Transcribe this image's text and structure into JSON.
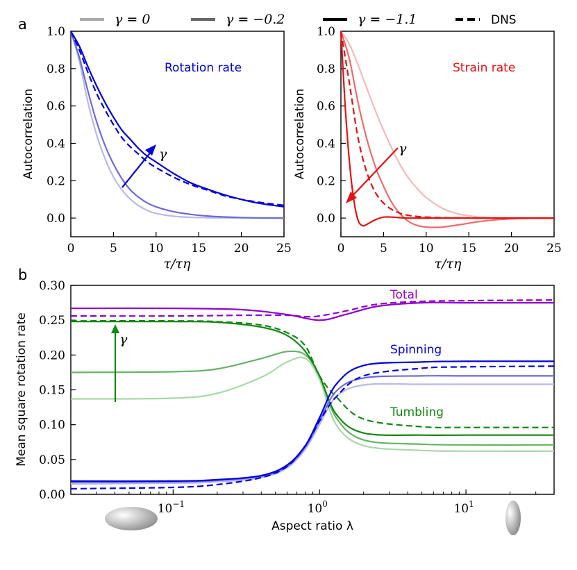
{
  "chart_data": [
    {
      "type": "line",
      "panel_label": "a",
      "xlabel": "τ/τη",
      "ylabel": "Autocorrelation",
      "xlim": [
        0,
        25
      ],
      "ylim": [
        -0.1,
        1.0
      ],
      "xticks": [
        "0",
        "5",
        "10",
        "15",
        "20",
        "25"
      ],
      "yticks": [
        "0.0",
        "0.2",
        "0.4",
        "0.6",
        "0.8",
        "1.0"
      ],
      "annotation": "Rotation rate",
      "arrow_label": "γ",
      "colors": [
        "#b8b8ee",
        "#6a6ae0",
        "#0000dd",
        "#0000dd"
      ],
      "series": [
        {
          "name": "γ = 0",
          "x": [
            0,
            1,
            2,
            3,
            4,
            5,
            6,
            7,
            8,
            9,
            10,
            12,
            14,
            16,
            18,
            20,
            22,
            25
          ],
          "values": [
            1.0,
            0.84,
            0.62,
            0.45,
            0.32,
            0.22,
            0.15,
            0.1,
            0.065,
            0.04,
            0.025,
            0.01,
            0.004,
            0.002,
            0.001,
            0,
            0,
            0
          ]
        },
        {
          "name": "γ = -0.2",
          "x": [
            0,
            1,
            2,
            3,
            4,
            5,
            6,
            7,
            8,
            9,
            10,
            12,
            14,
            16,
            18,
            20,
            22,
            25
          ],
          "values": [
            1.0,
            0.86,
            0.68,
            0.52,
            0.39,
            0.29,
            0.21,
            0.15,
            0.11,
            0.08,
            0.06,
            0.035,
            0.02,
            0.011,
            0.006,
            0.003,
            0.001,
            0
          ]
        },
        {
          "name": "γ = -1.1",
          "x": [
            0,
            1,
            2,
            3,
            4,
            5,
            6,
            7,
            8,
            9,
            10,
            12,
            14,
            16,
            18,
            20,
            22,
            25
          ],
          "values": [
            1.0,
            0.92,
            0.81,
            0.71,
            0.62,
            0.54,
            0.47,
            0.42,
            0.37,
            0.33,
            0.3,
            0.24,
            0.19,
            0.155,
            0.125,
            0.1,
            0.08,
            0.06
          ]
        },
        {
          "name": "DNS",
          "x": [
            0,
            1,
            2,
            3,
            4,
            5,
            6,
            7,
            8,
            9,
            10,
            12,
            14,
            16,
            18,
            20,
            22,
            25
          ],
          "values": [
            1.0,
            0.9,
            0.78,
            0.67,
            0.58,
            0.5,
            0.43,
            0.38,
            0.34,
            0.3,
            0.27,
            0.22,
            0.18,
            0.15,
            0.12,
            0.1,
            0.085,
            0.068
          ]
        }
      ]
    },
    {
      "type": "line",
      "xlabel": "τ/τη",
      "ylabel": "Autocorrelation",
      "xlim": [
        0,
        25
      ],
      "ylim": [
        -0.1,
        1.0
      ],
      "xticks": [
        "0",
        "5",
        "10",
        "15",
        "20",
        "25"
      ],
      "yticks": [
        "0.0",
        "0.2",
        "0.4",
        "0.6",
        "0.8",
        "1.0"
      ],
      "annotation": "Strain rate",
      "arrow_label": "γ",
      "colors": [
        "#f5b8b8",
        "#ee6a6a",
        "#e81010",
        "#e81010"
      ],
      "series": [
        {
          "name": "γ = 0",
          "x": [
            0,
            1,
            2,
            3,
            4,
            5,
            6,
            7,
            8,
            9,
            10,
            12,
            14,
            16,
            18,
            20,
            22,
            25
          ],
          "values": [
            1.0,
            0.93,
            0.82,
            0.7,
            0.58,
            0.47,
            0.37,
            0.28,
            0.21,
            0.155,
            0.11,
            0.05,
            0.02,
            0.007,
            0.002,
            0,
            0,
            0
          ]
        },
        {
          "name": "γ = -0.2",
          "x": [
            0,
            1,
            2,
            3,
            4,
            5,
            6,
            7,
            8,
            9,
            10,
            11,
            12,
            14,
            16,
            18,
            20,
            22,
            25
          ],
          "values": [
            1.0,
            0.85,
            0.62,
            0.43,
            0.28,
            0.17,
            0.08,
            0.02,
            -0.02,
            -0.04,
            -0.048,
            -0.05,
            -0.048,
            -0.035,
            -0.02,
            -0.01,
            -0.004,
            -0.001,
            0
          ]
        },
        {
          "name": "γ = -1.1",
          "x": [
            0,
            0.5,
            1,
            1.5,
            2,
            2.5,
            3,
            4,
            5,
            6,
            7,
            8,
            10,
            12,
            15,
            20,
            25
          ],
          "values": [
            1.0,
            0.6,
            0.3,
            0.1,
            -0.01,
            -0.04,
            -0.035,
            -0.01,
            0.005,
            0.005,
            0.002,
            0,
            0,
            0,
            0,
            0,
            0
          ]
        },
        {
          "name": "DNS",
          "x": [
            0,
            1,
            2,
            3,
            4,
            5,
            6,
            7,
            8,
            9,
            10,
            12,
            14,
            16,
            18,
            20,
            22,
            25
          ],
          "values": [
            1.0,
            0.72,
            0.43,
            0.25,
            0.14,
            0.08,
            0.045,
            0.025,
            0.014,
            0.008,
            0.005,
            0.002,
            0.001,
            0,
            0,
            0,
            0,
            0
          ]
        }
      ]
    },
    {
      "type": "line",
      "panel_label": "b",
      "xlabel": "Aspect ratio λ",
      "ylabel": "Mean square rotation rate",
      "xscale": "log",
      "xlim": [
        0.02,
        40
      ],
      "ylim": [
        0.0,
        0.3
      ],
      "xticks": [
        "10−1",
        "100",
        "101"
      ],
      "yticks": [
        "0.00",
        "0.05",
        "0.10",
        "0.15",
        "0.20",
        "0.25",
        "0.30"
      ],
      "annotations": [
        "Total",
        "Spinning",
        "Tumbling"
      ],
      "arrow_label": "γ",
      "series": [
        {
          "name": "Total γ = -1.1",
          "group": "Total",
          "color": "#9400cc",
          "dashed": false,
          "x": [
            0.02,
            0.1,
            0.3,
            0.6,
            1.0,
            1.5,
            2.5,
            5,
            10,
            40
          ],
          "values": [
            0.267,
            0.267,
            0.265,
            0.258,
            0.25,
            0.258,
            0.27,
            0.275,
            0.275,
            0.275
          ]
        },
        {
          "name": "Total DNS",
          "group": "Total",
          "color": "#9400cc",
          "dashed": true,
          "x": [
            0.02,
            0.1,
            0.3,
            0.6,
            0.8,
            1.0,
            1.5,
            2.5,
            5,
            10,
            40
          ],
          "values": [
            0.256,
            0.256,
            0.257,
            0.257,
            0.255,
            0.256,
            0.263,
            0.273,
            0.277,
            0.278,
            0.279
          ]
        },
        {
          "name": "Tumbling γ = 0",
          "group": "Tumbling",
          "color": "#a8d8a8",
          "dashed": false,
          "x": [
            0.02,
            0.1,
            0.2,
            0.4,
            0.6,
            0.8,
            1.0,
            1.3,
            2,
            5,
            10,
            40
          ],
          "values": [
            0.137,
            0.138,
            0.145,
            0.168,
            0.19,
            0.195,
            0.165,
            0.1,
            0.07,
            0.063,
            0.062,
            0.062
          ]
        },
        {
          "name": "Tumbling γ = -0.2",
          "group": "Tumbling",
          "color": "#66b366",
          "dashed": false,
          "x": [
            0.02,
            0.1,
            0.2,
            0.4,
            0.6,
            0.8,
            1.0,
            1.3,
            2,
            5,
            10,
            40
          ],
          "values": [
            0.175,
            0.176,
            0.18,
            0.195,
            0.205,
            0.2,
            0.17,
            0.11,
            0.078,
            0.072,
            0.071,
            0.071
          ]
        },
        {
          "name": "Tumbling γ = -1.1",
          "group": "Tumbling",
          "color": "#118811",
          "dashed": false,
          "x": [
            0.02,
            0.1,
            0.2,
            0.4,
            0.6,
            0.8,
            1.0,
            1.3,
            2,
            5,
            10,
            40
          ],
          "values": [
            0.248,
            0.248,
            0.247,
            0.24,
            0.228,
            0.205,
            0.17,
            0.115,
            0.088,
            0.085,
            0.085,
            0.085
          ]
        },
        {
          "name": "Tumbling DNS",
          "group": "Tumbling",
          "color": "#118811",
          "dashed": true,
          "x": [
            0.02,
            0.1,
            0.2,
            0.4,
            0.6,
            0.8,
            1.0,
            1.3,
            2,
            5,
            10,
            40
          ],
          "values": [
            0.249,
            0.249,
            0.248,
            0.243,
            0.232,
            0.213,
            0.17,
            0.14,
            0.108,
            0.097,
            0.096,
            0.096
          ]
        },
        {
          "name": "Spinning γ = 0",
          "group": "Spinning",
          "color": "#b8b8ee",
          "dashed": false,
          "x": [
            0.02,
            0.1,
            0.2,
            0.4,
            0.6,
            0.8,
            1.0,
            1.3,
            2,
            5,
            10,
            40
          ],
          "values": [
            0.015,
            0.016,
            0.018,
            0.024,
            0.038,
            0.065,
            0.1,
            0.14,
            0.157,
            0.158,
            0.158,
            0.158
          ]
        },
        {
          "name": "Spinning γ = -0.2",
          "group": "Spinning",
          "color": "#6a6ae0",
          "dashed": false,
          "x": [
            0.02,
            0.1,
            0.2,
            0.4,
            0.6,
            0.8,
            1.0,
            1.3,
            2,
            5,
            10,
            40
          ],
          "values": [
            0.017,
            0.018,
            0.02,
            0.026,
            0.04,
            0.068,
            0.105,
            0.148,
            0.167,
            0.17,
            0.17,
            0.17
          ]
        },
        {
          "name": "Spinning γ = -1.1",
          "group": "Spinning",
          "color": "#0000dd",
          "dashed": false,
          "x": [
            0.02,
            0.1,
            0.2,
            0.4,
            0.6,
            0.8,
            1.0,
            1.3,
            2,
            5,
            10,
            40
          ],
          "values": [
            0.019,
            0.019,
            0.021,
            0.027,
            0.042,
            0.07,
            0.11,
            0.158,
            0.185,
            0.19,
            0.191,
            0.191
          ]
        },
        {
          "name": "Spinning DNS",
          "group": "Spinning",
          "color": "#0000dd",
          "dashed": true,
          "x": [
            0.02,
            0.1,
            0.2,
            0.4,
            0.6,
            0.8,
            1.0,
            1.3,
            2,
            5,
            10,
            40
          ],
          "values": [
            0.008,
            0.01,
            0.014,
            0.024,
            0.04,
            0.07,
            0.105,
            0.14,
            0.17,
            0.181,
            0.183,
            0.184
          ]
        }
      ]
    }
  ],
  "legend": [
    {
      "label": "γ = 0",
      "color": "#aaaaaa",
      "dashed": false
    },
    {
      "label": "γ = −0.2",
      "color": "#666666",
      "dashed": false
    },
    {
      "label": "γ = −1.1",
      "color": "#000000",
      "dashed": false
    },
    {
      "label": "DNS",
      "color": "#000000",
      "dashed": true
    }
  ]
}
